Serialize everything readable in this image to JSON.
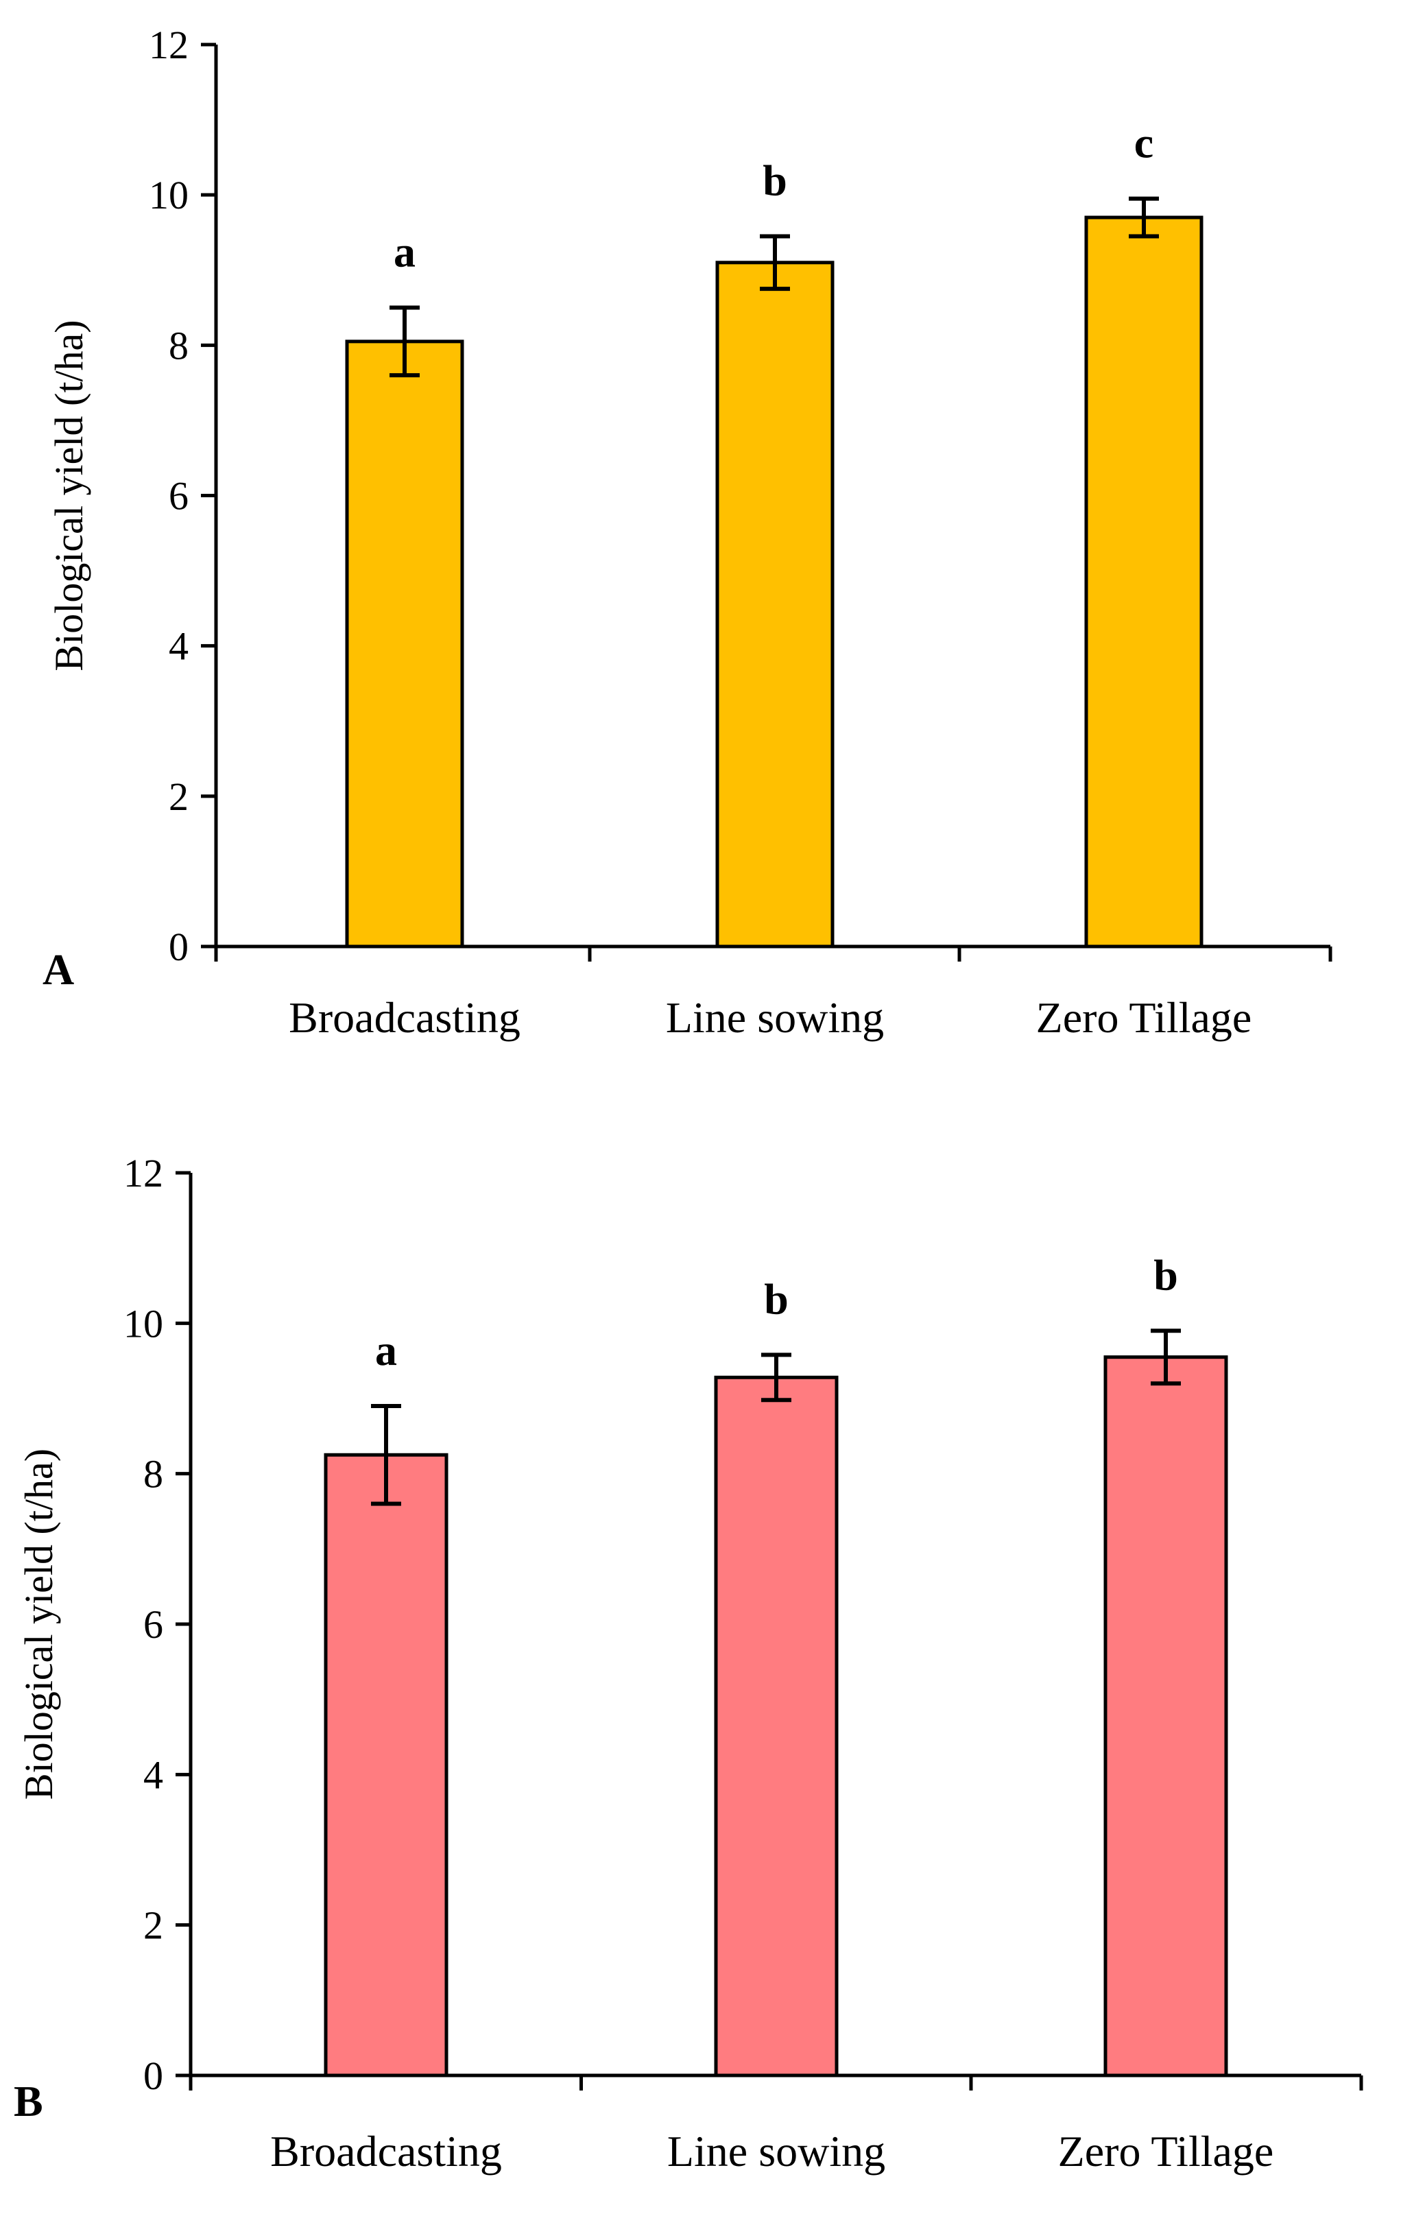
{
  "chart_data": [
    {
      "type": "bar",
      "panel_label": "A",
      "title": "",
      "xlabel": "",
      "ylabel": "Biological yield (t/ha)",
      "ylim": [
        0,
        12
      ],
      "yticks": [
        0,
        2,
        4,
        6,
        8,
        10,
        12
      ],
      "grid": false,
      "bar_color": "#FFC000",
      "categories": [
        "Broadcasting",
        "Line sowing",
        "Zero Tillage"
      ],
      "values": [
        8.05,
        9.1,
        9.7
      ],
      "errors": [
        0.45,
        0.35,
        0.25
      ],
      "significance": [
        "a",
        "b",
        "c"
      ]
    },
    {
      "type": "bar",
      "panel_label": "B",
      "title": "",
      "xlabel": "",
      "ylabel": "Biological yield (t/ha)",
      "ylim": [
        0,
        12
      ],
      "yticks": [
        0,
        2,
        4,
        6,
        8,
        10,
        12
      ],
      "grid": false,
      "bar_color": "#FF7C80",
      "categories": [
        "Broadcasting",
        "Line sowing",
        "Zero Tillage"
      ],
      "values": [
        8.25,
        9.28,
        9.55
      ],
      "errors": [
        0.65,
        0.3,
        0.35
      ],
      "significance": [
        "a",
        "b",
        "b"
      ]
    }
  ]
}
